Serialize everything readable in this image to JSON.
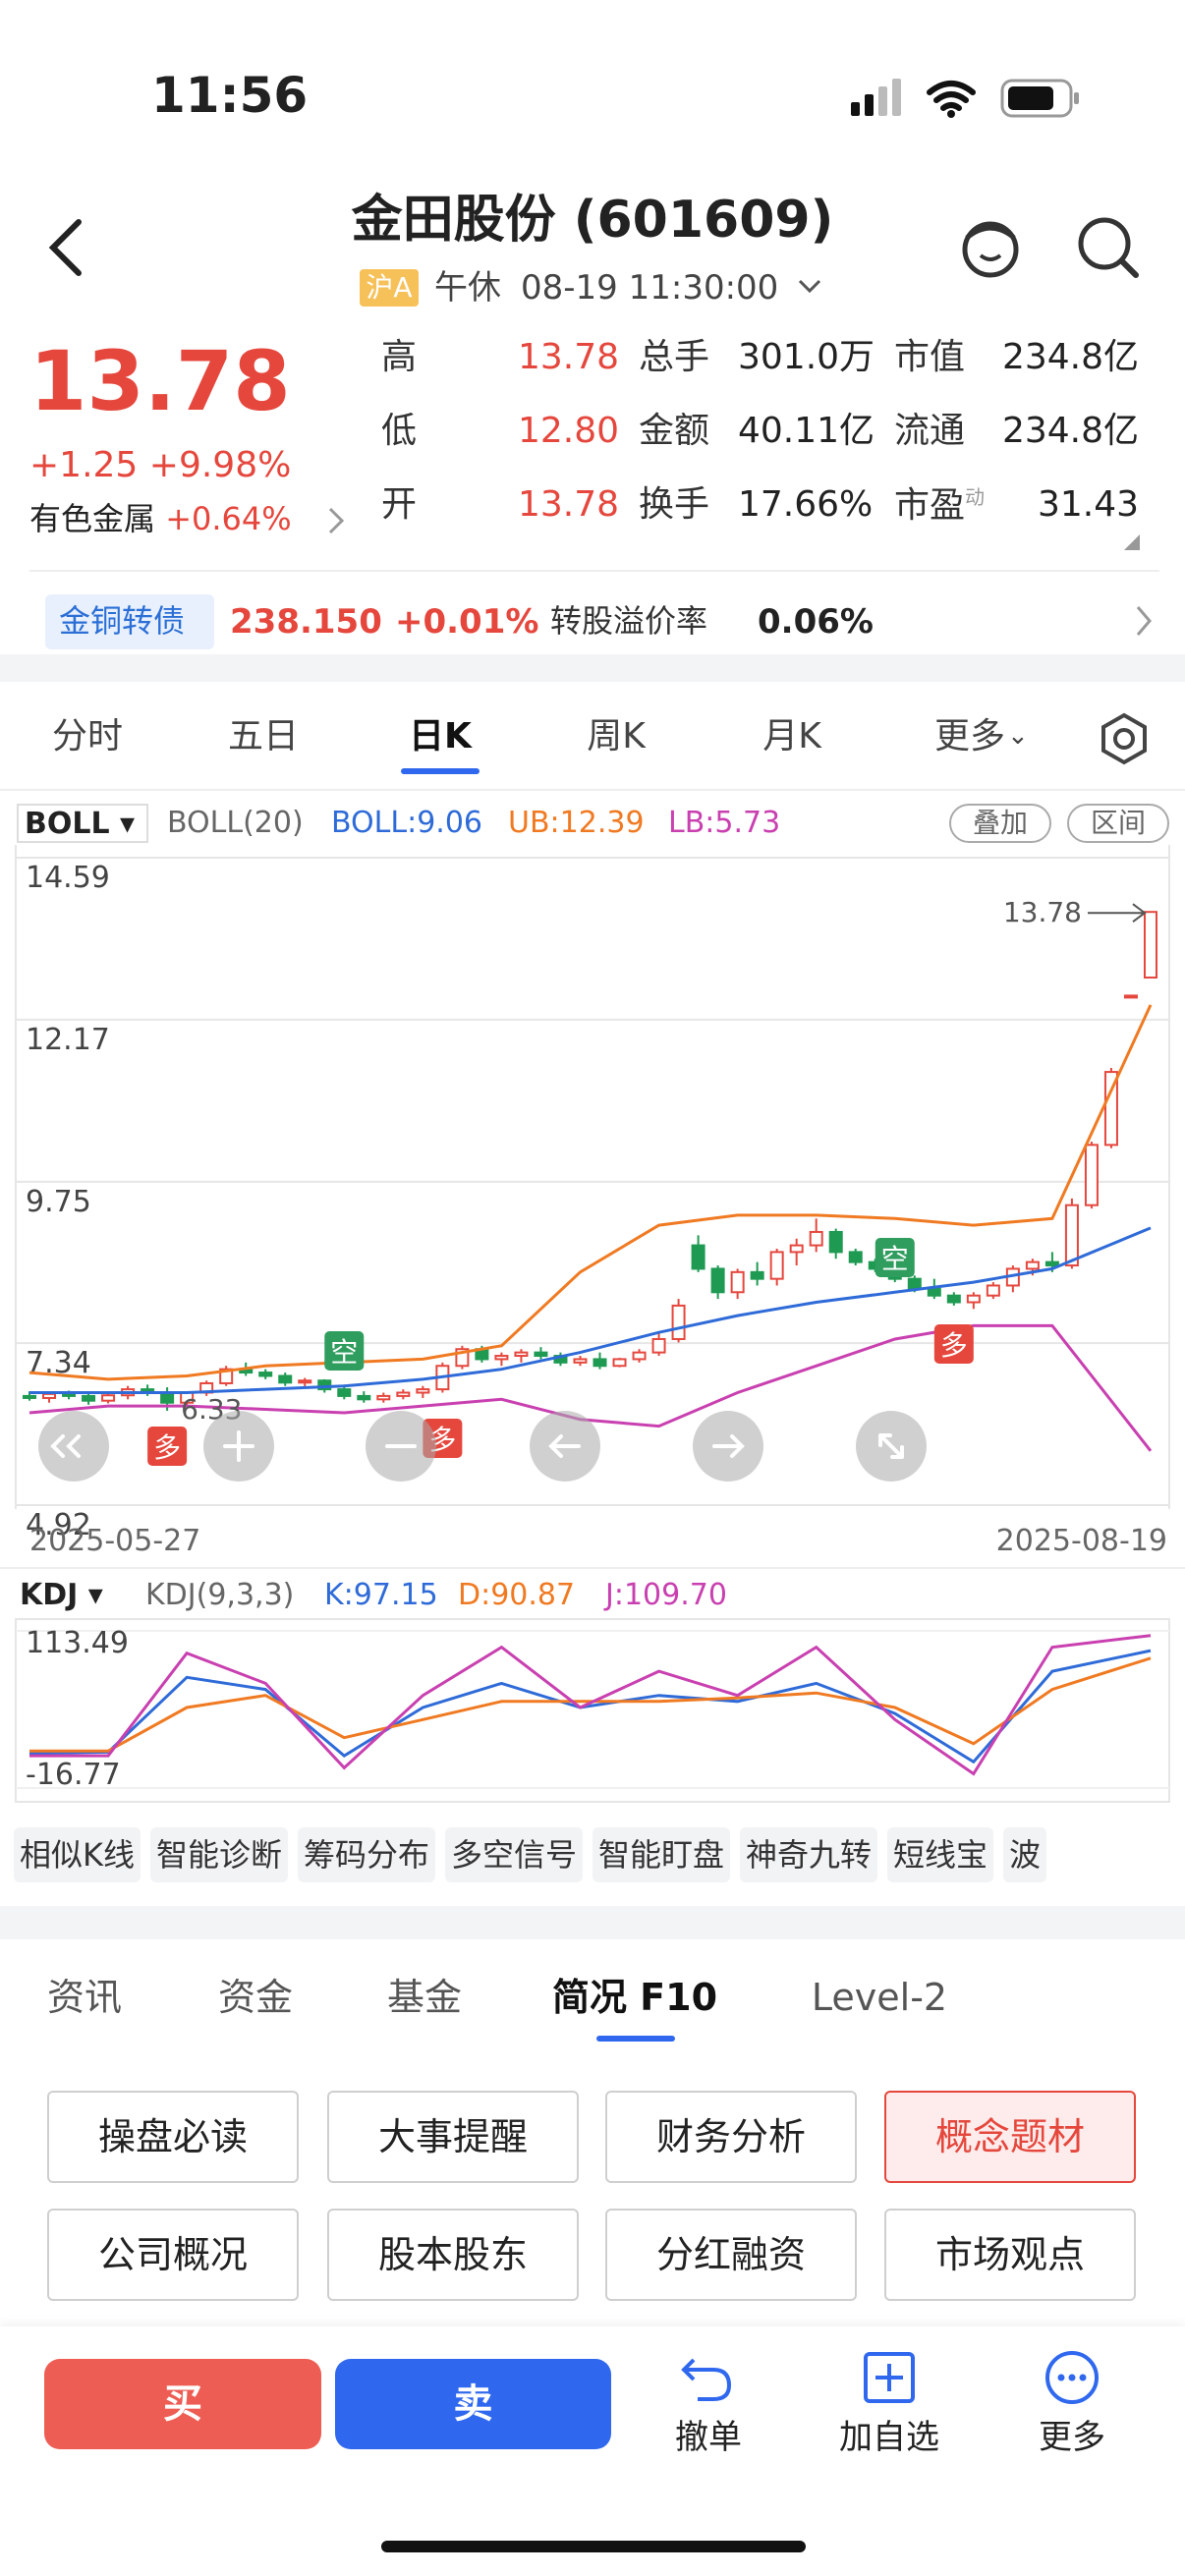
{
  "status_bar": {
    "time": "11:56"
  },
  "header": {
    "title": "金田股份 (601609)",
    "market": "沪A",
    "status": "午休",
    "datetime": "08-19 11:30:00"
  },
  "quote": {
    "price": "13.78",
    "change": "+1.25",
    "change_pct": "+9.98%",
    "sector": "有色金属",
    "sector_change": "+0.64%",
    "pe_sup": "动",
    "stats": [
      [
        "高",
        "13.78",
        "总手",
        "301.0万",
        "市值",
        "234.8亿"
      ],
      [
        "低",
        "12.80",
        "金额",
        "40.11亿",
        "流通",
        "234.8亿"
      ],
      [
        "开",
        "13.78",
        "换手",
        "17.66%",
        "市盈",
        "31.43"
      ]
    ]
  },
  "bond": {
    "name": "金铜转债",
    "price": "238.150",
    "change": "+0.01%",
    "premium_label": "转股溢价率",
    "premium": "0.06%"
  },
  "chart_tabs": [
    "分时",
    "五日",
    "日K",
    "周K",
    "月K",
    "更多"
  ],
  "kline": {
    "type": "candlestick",
    "indicator": "BOLL",
    "params": "BOLL(20)",
    "mid_label": "BOLL:9.06",
    "upper_label": "UB:12.39",
    "lower_label": "LB:5.73",
    "buttons": [
      "叠加",
      "区间"
    ],
    "ylim": [
      4.92,
      14.59
    ],
    "yticks": [
      14.59,
      12.17,
      9.75,
      7.34,
      4.92
    ],
    "high_label": "13.78",
    "low_label": "6.33",
    "start_date": "2025-05-27",
    "end_date": "2025-08-19",
    "signals": [
      "多",
      "空",
      "多",
      "空",
      "多"
    ],
    "ohlc": [
      [
        6.55,
        6.62,
        6.48,
        6.52
      ],
      [
        6.52,
        6.6,
        6.45,
        6.58
      ],
      [
        6.58,
        6.63,
        6.5,
        6.55
      ],
      [
        6.55,
        6.6,
        6.42,
        6.48
      ],
      [
        6.48,
        6.58,
        6.44,
        6.56
      ],
      [
        6.56,
        6.7,
        6.5,
        6.65
      ],
      [
        6.65,
        6.72,
        6.55,
        6.6
      ],
      [
        6.6,
        6.68,
        6.33,
        6.45
      ],
      [
        6.45,
        6.62,
        6.4,
        6.6
      ],
      [
        6.6,
        6.78,
        6.55,
        6.74
      ],
      [
        6.74,
        7.0,
        6.7,
        6.95
      ],
      [
        6.95,
        7.05,
        6.85,
        6.9
      ],
      [
        6.9,
        6.95,
        6.8,
        6.85
      ],
      [
        6.85,
        6.9,
        6.7,
        6.75
      ],
      [
        6.75,
        6.82,
        6.68,
        6.78
      ],
      [
        6.78,
        6.8,
        6.6,
        6.65
      ],
      [
        6.65,
        6.72,
        6.5,
        6.55
      ],
      [
        6.55,
        6.62,
        6.45,
        6.5
      ],
      [
        6.5,
        6.6,
        6.45,
        6.55
      ],
      [
        6.55,
        6.65,
        6.5,
        6.6
      ],
      [
        6.6,
        6.7,
        6.52,
        6.65
      ],
      [
        6.65,
        7.05,
        6.6,
        7.0
      ],
      [
        7.0,
        7.3,
        6.95,
        7.25
      ],
      [
        7.25,
        7.3,
        7.05,
        7.1
      ],
      [
        7.1,
        7.2,
        7.0,
        7.15
      ],
      [
        7.15,
        7.25,
        7.05,
        7.2
      ],
      [
        7.2,
        7.28,
        7.1,
        7.15
      ],
      [
        7.15,
        7.2,
        7.0,
        7.05
      ],
      [
        7.05,
        7.15,
        7.0,
        7.1
      ],
      [
        7.1,
        7.2,
        6.95,
        7.0
      ],
      [
        7.0,
        7.12,
        6.98,
        7.1
      ],
      [
        7.1,
        7.25,
        7.05,
        7.2
      ],
      [
        7.2,
        7.5,
        7.15,
        7.4
      ],
      [
        7.4,
        8.0,
        7.35,
        7.9
      ],
      [
        8.8,
        8.95,
        8.4,
        8.45
      ],
      [
        8.45,
        8.5,
        8.0,
        8.1
      ],
      [
        8.1,
        8.45,
        8.0,
        8.4
      ],
      [
        8.4,
        8.55,
        8.2,
        8.3
      ],
      [
        8.3,
        8.75,
        8.2,
        8.7
      ],
      [
        8.7,
        8.9,
        8.5,
        8.8
      ],
      [
        8.8,
        9.2,
        8.7,
        9.0
      ],
      [
        9.0,
        9.05,
        8.6,
        8.7
      ],
      [
        8.7,
        8.75,
        8.5,
        8.55
      ],
      [
        8.55,
        8.6,
        8.4,
        8.45
      ],
      [
        8.45,
        8.5,
        8.25,
        8.3
      ],
      [
        8.3,
        8.35,
        8.1,
        8.15
      ],
      [
        8.15,
        8.3,
        8.0,
        8.05
      ],
      [
        8.05,
        8.1,
        7.9,
        7.95
      ],
      [
        7.95,
        8.1,
        7.85,
        8.05
      ],
      [
        8.05,
        8.25,
        8.0,
        8.2
      ],
      [
        8.2,
        8.5,
        8.1,
        8.45
      ],
      [
        8.45,
        8.6,
        8.35,
        8.55
      ],
      [
        8.55,
        8.7,
        8.4,
        8.5
      ],
      [
        8.5,
        9.5,
        8.45,
        9.4
      ],
      [
        9.4,
        10.35,
        9.35,
        10.3
      ],
      [
        10.3,
        11.45,
        10.25,
        11.39
      ],
      [
        12.53,
        12.53,
        12.53,
        12.53
      ],
      [
        12.8,
        13.78,
        12.8,
        13.78
      ]
    ],
    "boll": {
      "x": [
        0,
        4,
        8,
        12,
        16,
        20,
        24,
        28,
        32,
        36,
        40,
        44,
        48,
        52,
        57
      ],
      "series": [
        {
          "name": "MID",
          "color": "#2f6bd8",
          "values": [
            6.6,
            6.6,
            6.6,
            6.65,
            6.7,
            6.8,
            6.95,
            7.2,
            7.5,
            7.75,
            7.95,
            8.1,
            8.25,
            8.45,
            9.06
          ]
        },
        {
          "name": "UB",
          "color": "#f07a22",
          "values": [
            6.9,
            6.8,
            6.85,
            7.0,
            7.05,
            7.1,
            7.3,
            8.4,
            9.1,
            9.25,
            9.25,
            9.2,
            9.1,
            9.2,
            12.39
          ]
        },
        {
          "name": "LB",
          "color": "#c940b0",
          "values": [
            6.3,
            6.4,
            6.4,
            6.35,
            6.3,
            6.4,
            6.5,
            6.2,
            6.1,
            6.6,
            7.0,
            7.4,
            7.6,
            7.6,
            5.73
          ]
        }
      ]
    }
  },
  "kdj": {
    "type": "line",
    "indicator": "KDJ",
    "params": "KDJ(9,3,3)",
    "k_label": "K:97.15",
    "d_label": "D:90.87",
    "j_label": "J:109.70",
    "ylim": [
      -16.77,
      113.49
    ],
    "yticks": [
      113.49,
      -16.77
    ],
    "x": [
      0,
      4,
      8,
      12,
      16,
      20,
      24,
      28,
      32,
      36,
      40,
      44,
      48,
      52,
      57
    ],
    "series": [
      {
        "name": "K",
        "color": "#2f6bd8",
        "values": [
          12,
          13,
          75,
          65,
          10,
          50,
          70,
          50,
          60,
          55,
          70,
          45,
          5,
          80,
          97.15
        ]
      },
      {
        "name": "D",
        "color": "#f07a22",
        "values": [
          14,
          14,
          50,
          60,
          25,
          40,
          55,
          55,
          55,
          58,
          62,
          50,
          20,
          65,
          90.87
        ]
      },
      {
        "name": "J",
        "color": "#c940b0",
        "values": [
          10,
          10,
          95,
          70,
          0,
          60,
          100,
          50,
          80,
          60,
          100,
          40,
          -5,
          100,
          109.7
        ]
      }
    ]
  },
  "tools": [
    "相似K线",
    "智能诊断",
    "筹码分布",
    "多空信号",
    "智能盯盘",
    "神奇九转",
    "短线宝",
    "波"
  ],
  "info_tabs": [
    "资讯",
    "资金",
    "基金",
    "简况 F10",
    "Level-2"
  ],
  "f10_buttons": [
    "操盘必读",
    "大事提醒",
    "财务分析",
    "概念题材",
    "公司概况",
    "股本股东",
    "分红融资",
    "市场观点"
  ],
  "bottom": {
    "buy": "买",
    "sell": "卖",
    "actions": [
      "撤单",
      "加自选",
      "更多"
    ]
  }
}
